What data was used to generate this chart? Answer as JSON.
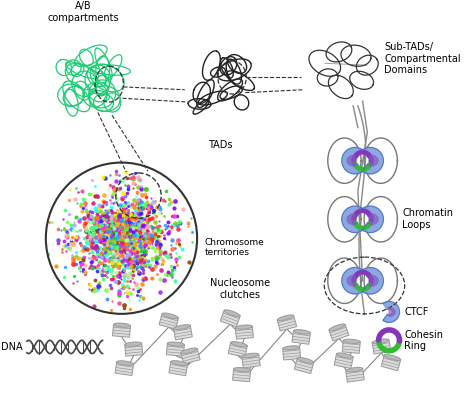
{
  "background_color": "#ffffff",
  "labels": {
    "ab_compartments": "A/B\ncompartments",
    "tads": "TADs",
    "sub_tads": "Sub-TADs/\nCompartmental\nDomains",
    "chromatin_loops": "Chromatin\nLoops",
    "nucleosome_clutches": "Nucleosome\nclutches",
    "chromosome_territories": "Chromosome\nterritories",
    "dna": "DNA",
    "ctcf": "CTCF",
    "cohesin_ring": "Cohesin\nRing"
  },
  "colors": {
    "green_chromatin": "#22cc77",
    "dark_line": "#333333",
    "gray_line": "#888888",
    "ctcf_blue_light": "#aaccee",
    "ctcf_blue_mid": "#7799dd",
    "ctcf_blue_dark": "#4466bb",
    "ctcf_purple": "#8855bb",
    "cohesin_green": "#33bb33",
    "cohesin_purple": "#8833bb",
    "nucleosome_light": "#dddddd",
    "nucleosome_mid": "#bbbbbb",
    "nucleosome_dark": "#999999",
    "dna_color": "#444444"
  },
  "figsize": [
    4.74,
    3.93
  ],
  "dpi": 100
}
